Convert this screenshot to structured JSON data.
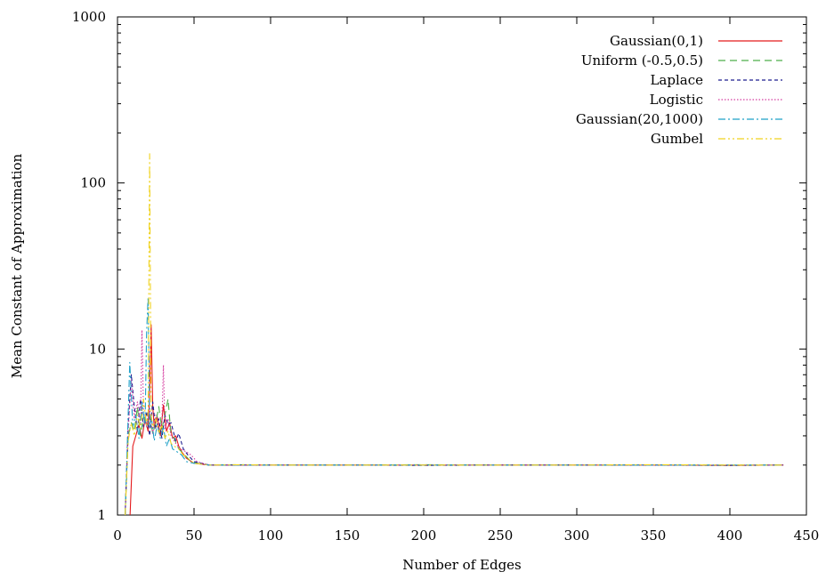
{
  "chart_data": {
    "type": "line",
    "title": "",
    "xlabel": "Number of Edges",
    "ylabel": "Mean Constant of Approximation",
    "xlim": [
      0,
      450
    ],
    "ylim": [
      1,
      1000
    ],
    "y_scale": "log",
    "x_ticks": [
      "0",
      "50",
      "100",
      "150",
      "200",
      "250",
      "300",
      "350",
      "400",
      "450"
    ],
    "y_ticks": [
      "1",
      "10",
      "100",
      "1000"
    ],
    "grid": false,
    "legend_position": "top-right",
    "series": [
      {
        "name": "Gaussian(0,1)",
        "color": "#e41a1c",
        "dash": "solid",
        "x": [
          5,
          8,
          10,
          12,
          14,
          16,
          18,
          20,
          21,
          22,
          23,
          24,
          26,
          28,
          30,
          32,
          34,
          36,
          38,
          40,
          42,
          45,
          50,
          60,
          80,
          100,
          150,
          200,
          250,
          300,
          350,
          400,
          435
        ],
        "y": [
          0.5,
          0.9,
          2.6,
          3.0,
          3.5,
          2.9,
          3.8,
          3.2,
          5.5,
          14,
          4.5,
          3.4,
          3.9,
          3.0,
          4.6,
          3.2,
          3.6,
          2.9,
          3.0,
          2.6,
          2.4,
          2.2,
          2.05,
          2.0,
          2.0,
          2.0,
          2.0,
          2.0,
          2.0,
          2.0,
          2.0,
          1.99,
          2.0
        ]
      },
      {
        "name": "Uniform (-0.5,0.5)",
        "color": "#4daf4a",
        "dash": "long-dash",
        "x": [
          5,
          7,
          9,
          11,
          13,
          15,
          17,
          19,
          21,
          23,
          25,
          27,
          29,
          31,
          33,
          35,
          37,
          40,
          44,
          48,
          52,
          60,
          80,
          100,
          150,
          200,
          250,
          300,
          350,
          400,
          435
        ],
        "y": [
          1.0,
          3.0,
          3.6,
          3.2,
          4.5,
          3.0,
          3.9,
          3.4,
          4.0,
          3.1,
          3.6,
          4.5,
          3.3,
          4.0,
          5.0,
          3.0,
          2.9,
          2.5,
          2.3,
          2.1,
          2.05,
          2.0,
          2.01,
          2.0,
          2.0,
          2.01,
          2.0,
          2.0,
          2.0,
          2.0,
          2.0
        ]
      },
      {
        "name": "Laplace",
        "color": "#1f1f8f",
        "dash": "short-dash",
        "x": [
          5,
          7,
          9,
          11,
          13,
          15,
          17,
          19,
          21,
          23,
          25,
          27,
          29,
          31,
          33,
          35,
          38,
          40,
          43,
          46,
          50,
          60,
          80,
          100,
          150,
          200,
          250,
          300,
          350,
          400,
          435
        ],
        "y": [
          1.0,
          3.5,
          7.0,
          4.5,
          3.2,
          5.0,
          3.4,
          4.2,
          3.0,
          4.8,
          3.3,
          3.8,
          2.9,
          4.0,
          3.5,
          3.6,
          2.8,
          3.1,
          2.5,
          2.3,
          2.1,
          2.0,
          2.0,
          2.0,
          2.0,
          1.99,
          2.0,
          2.0,
          2.0,
          1.99,
          2.0
        ]
      },
      {
        "name": "Logistic",
        "color": "#d53ea0",
        "dash": "dotted",
        "x": [
          5,
          7,
          9,
          11,
          13,
          15,
          16,
          17,
          19,
          21,
          23,
          25,
          27,
          29,
          30,
          31,
          33,
          35,
          38,
          41,
          45,
          48,
          52,
          60,
          80,
          100,
          150,
          200,
          250,
          300,
          350,
          400,
          435
        ],
        "y": [
          1.0,
          3.2,
          6.5,
          3.8,
          4.8,
          3.6,
          13,
          4.2,
          3.4,
          4.4,
          3.1,
          4.0,
          3.2,
          3.6,
          8.0,
          3.3,
          3.8,
          3.0,
          2.7,
          2.5,
          2.4,
          2.3,
          2.1,
          2.0,
          2.0,
          2.0,
          2.0,
          2.0,
          2.0,
          2.0,
          2.0,
          2.0,
          2.0
        ]
      },
      {
        "name": "Gaussian(20,1000)",
        "color": "#1fa0c8",
        "dash": "dash-dot",
        "x": [
          5,
          7,
          8,
          10,
          12,
          14,
          16,
          18,
          19,
          20,
          21,
          22,
          24,
          26,
          28,
          30,
          32,
          34,
          36,
          39,
          42,
          45,
          50,
          60,
          80,
          100,
          150,
          200,
          250,
          300,
          350,
          400,
          435
        ],
        "y": [
          1.0,
          4.0,
          8.3,
          3.4,
          4.0,
          2.9,
          4.8,
          3.5,
          12.5,
          20.5,
          3.4,
          4.0,
          2.8,
          3.5,
          2.9,
          3.4,
          2.6,
          2.9,
          2.5,
          2.4,
          2.3,
          2.1,
          2.05,
          2.0,
          2.0,
          2.0,
          2.0,
          2.0,
          2.0,
          2.0,
          2.0,
          2.0,
          2.0
        ]
      },
      {
        "name": "Gumbel",
        "color": "#f0d21e",
        "dash": "dash-dot-dot",
        "x": [
          5,
          7,
          9,
          11,
          13,
          15,
          17,
          19,
          20,
          21,
          22,
          23,
          25,
          27,
          29,
          31,
          33,
          35,
          37,
          40,
          43,
          46,
          50,
          60,
          80,
          100,
          150,
          200,
          250,
          300,
          350,
          400,
          435
        ],
        "y": [
          1.0,
          2.8,
          3.6,
          3.0,
          4.0,
          3.3,
          5.0,
          3.5,
          4.2,
          150,
          4.0,
          3.4,
          3.8,
          3.1,
          3.5,
          2.9,
          3.2,
          2.7,
          2.6,
          2.5,
          2.3,
          2.2,
          2.05,
          2.0,
          2.01,
          2.0,
          2.0,
          2.0,
          2.0,
          2.0,
          2.01,
          2.0,
          2.0
        ]
      }
    ]
  }
}
